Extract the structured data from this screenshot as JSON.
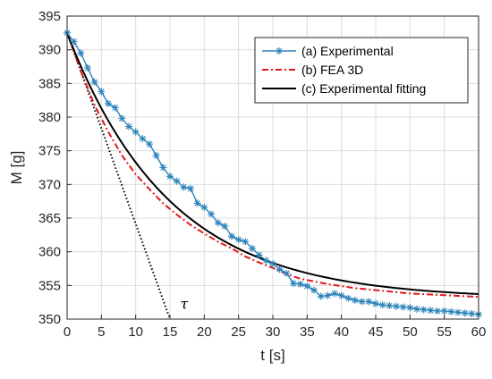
{
  "chart_data": {
    "type": "line",
    "xlabel": "t [s]",
    "ylabel": "M [g]",
    "xlim": [
      0,
      60
    ],
    "ylim": [
      350,
      395
    ],
    "xticks": [
      0,
      5,
      10,
      15,
      20,
      25,
      30,
      35,
      40,
      45,
      50,
      55,
      60
    ],
    "yticks": [
      350,
      355,
      360,
      365,
      370,
      375,
      380,
      385,
      390,
      395
    ],
    "grid": true,
    "legend_position": "top-right",
    "annotation": {
      "text": "τ",
      "x": 16.5,
      "y": 351.5
    },
    "series": [
      {
        "name": "(a) Experimental",
        "color": "#2b83ba",
        "style": "solid",
        "marker": "asterisk",
        "x": [
          0,
          1,
          2,
          3,
          4,
          5,
          6,
          7,
          8,
          9,
          10,
          11,
          12,
          13,
          14,
          15,
          16,
          17,
          18,
          19,
          20,
          21,
          22,
          23,
          24,
          25,
          26,
          27,
          28,
          29,
          30,
          31,
          32,
          33,
          34,
          35,
          36,
          37,
          38,
          39,
          40,
          41,
          42,
          43,
          44,
          45,
          46,
          47,
          48,
          49,
          50,
          51,
          52,
          53,
          54,
          55,
          56,
          57,
          58,
          59,
          60
        ],
        "y": [
          392.5,
          391.2,
          389.5,
          387.3,
          385.2,
          383.8,
          382.0,
          381.4,
          379.8,
          378.6,
          377.8,
          376.8,
          376.0,
          374.3,
          372.5,
          371.2,
          370.5,
          369.6,
          369.4,
          367.2,
          366.6,
          365.6,
          364.3,
          363.8,
          362.3,
          361.8,
          361.5,
          360.5,
          359.5,
          358.7,
          358.2,
          357.4,
          356.8,
          355.3,
          355.2,
          354.9,
          354.3,
          353.4,
          353.5,
          353.8,
          353.5,
          353.1,
          352.8,
          352.6,
          352.6,
          352.3,
          352.1,
          352.0,
          351.9,
          351.8,
          351.7,
          351.5,
          351.4,
          351.3,
          351.2,
          351.2,
          351.1,
          351.0,
          350.9,
          350.8,
          350.7
        ]
      },
      {
        "name": "(b) FEA 3D",
        "color": "#e3191c",
        "style": "dashdot",
        "x": [
          0,
          2,
          4,
          6,
          8,
          10,
          12,
          14,
          16,
          18,
          20,
          22,
          24,
          26,
          28,
          30,
          32,
          34,
          36,
          38,
          40,
          42,
          44,
          46,
          48,
          50,
          52,
          54,
          56,
          58,
          60
        ],
        "y": [
          392.5,
          386.8,
          381.8,
          377.8,
          374.3,
          371.5,
          369.3,
          367.2,
          365.5,
          364.0,
          362.7,
          361.5,
          360.5,
          359.3,
          358.4,
          357.6,
          356.7,
          356.0,
          355.6,
          355.2,
          354.9,
          354.6,
          354.4,
          354.2,
          354.0,
          353.8,
          353.7,
          353.6,
          353.5,
          353.4,
          353.3
        ]
      },
      {
        "name": "(c) Experimental fitting",
        "color": "#000000",
        "style": "solid",
        "fit": {
          "a": 353.0,
          "b": 39.5,
          "tau": 15.0
        }
      },
      {
        "name": "",
        "color": "#000000",
        "style": "dotted",
        "x": [
          0,
          15
        ],
        "y": [
          392.5,
          350
        ]
      }
    ]
  }
}
